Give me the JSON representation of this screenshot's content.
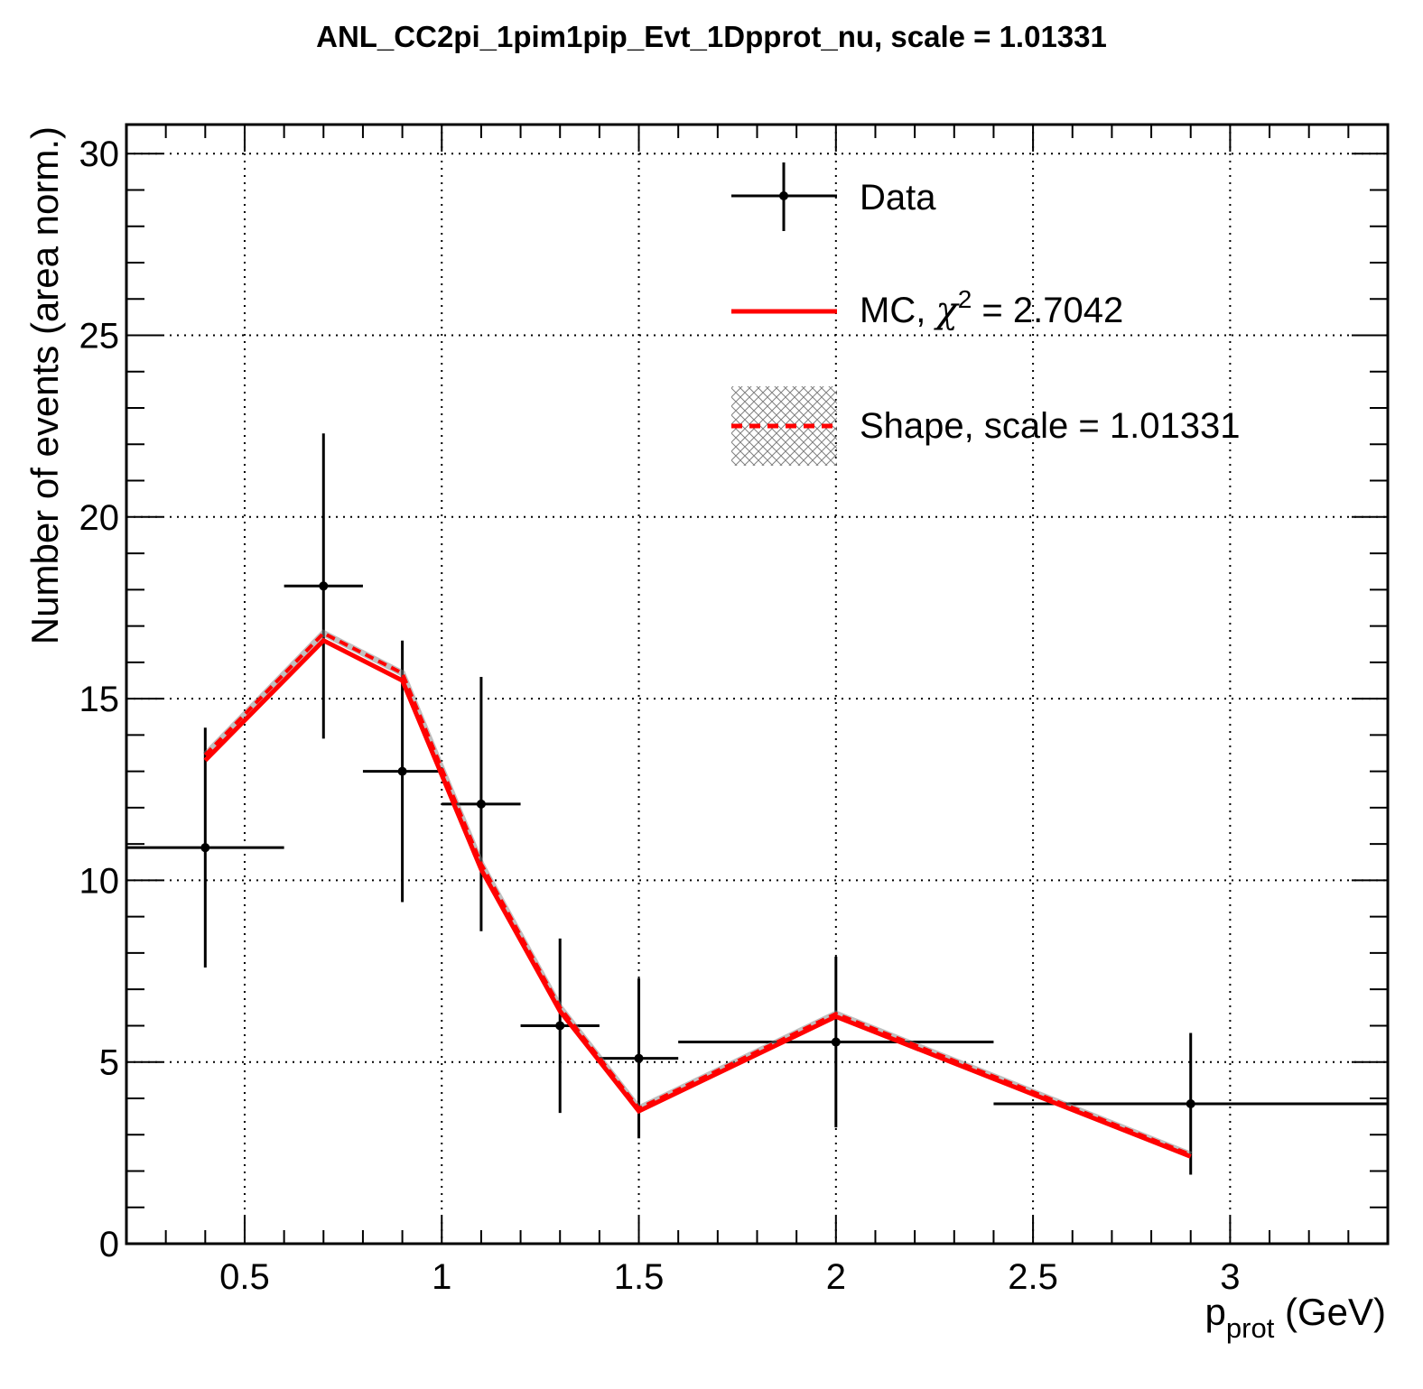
{
  "chart_data": {
    "type": "line",
    "title": "ANL_CC2pi_1pim1pip_Evt_1Dpprot_nu, scale = 1.01331",
    "xlabel": {
      "main": "p",
      "sub": "prot",
      "unit": " (GeV)"
    },
    "ylabel": "Number of events (area norm.)",
    "xlim": [
      0.2,
      3.4
    ],
    "ylim": [
      0,
      30.8
    ],
    "xticks": [
      {
        "value": 0.5,
        "label": "0.5"
      },
      {
        "value": 1.0,
        "label": "1"
      },
      {
        "value": 1.5,
        "label": "1.5"
      },
      {
        "value": 2.0,
        "label": "2"
      },
      {
        "value": 2.5,
        "label": "2.5"
      },
      {
        "value": 3.0,
        "label": "3"
      }
    ],
    "yticks": [
      {
        "value": 0,
        "label": "0"
      },
      {
        "value": 5,
        "label": "5"
      },
      {
        "value": 10,
        "label": "10"
      },
      {
        "value": 15,
        "label": "15"
      },
      {
        "value": 20,
        "label": "20"
      },
      {
        "value": 25,
        "label": "25"
      },
      {
        "value": 30,
        "label": "30"
      }
    ],
    "grid": true,
    "legend_position": "top-right",
    "legend": {
      "data": "Data",
      "mc": {
        "prefix": "MC, ",
        "chi": "χ",
        "sup": "2",
        "suffix": " = 2.7042"
      },
      "shape": "Shape, scale = 1.01331"
    },
    "colors": {
      "data": "#000000",
      "mc": "#ff0000",
      "shape": "#ff0000",
      "band": "#808080"
    },
    "data": [
      {
        "x": 0.4,
        "xlo": 0.2,
        "xhi": 0.6,
        "y": 10.9,
        "yerr": 3.3
      },
      {
        "x": 0.7,
        "xlo": 0.6,
        "xhi": 0.8,
        "y": 18.1,
        "yerr": 4.2
      },
      {
        "x": 0.9,
        "xlo": 0.8,
        "xhi": 1.0,
        "y": 13.0,
        "yerr": 3.6
      },
      {
        "x": 1.1,
        "xlo": 1.0,
        "xhi": 1.2,
        "y": 12.1,
        "yerr": 3.5
      },
      {
        "x": 1.3,
        "xlo": 1.2,
        "xhi": 1.4,
        "y": 6.0,
        "yerr": 2.4
      },
      {
        "x": 1.5,
        "xlo": 1.4,
        "xhi": 1.6,
        "y": 5.1,
        "yerr": 2.2
      },
      {
        "x": 2.0,
        "xlo": 1.6,
        "xhi": 2.4,
        "y": 5.55,
        "yerr": 2.35
      },
      {
        "x": 2.9,
        "xlo": 2.4,
        "xhi": 3.4,
        "y": 3.85,
        "yerr": 1.95
      }
    ],
    "mc": {
      "x": [
        0.4,
        0.7,
        0.9,
        1.1,
        1.3,
        1.5,
        2.0,
        2.9
      ],
      "y": [
        13.3,
        16.6,
        15.5,
        10.3,
        6.4,
        3.65,
        6.25,
        2.4
      ]
    },
    "shape": {
      "x": [
        0.4,
        0.7,
        0.9,
        1.1,
        1.3,
        1.5,
        2.0,
        2.9
      ],
      "y": [
        13.45,
        16.8,
        15.7,
        10.45,
        6.5,
        3.72,
        6.33,
        2.45
      ]
    }
  }
}
